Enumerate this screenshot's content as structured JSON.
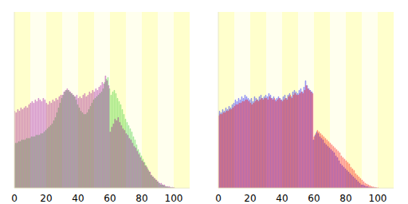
{
  "chart_data": [
    {
      "type": "bar",
      "tick_labels": "x",
      "xlim": [
        0,
        110
      ],
      "xticks": [
        0,
        20,
        40,
        60,
        80,
        100
      ],
      "ylim": [
        0,
        110
      ],
      "x": [
        0,
        1,
        2,
        3,
        4,
        5,
        6,
        7,
        8,
        9,
        10,
        11,
        12,
        13,
        14,
        15,
        16,
        17,
        18,
        19,
        20,
        21,
        22,
        23,
        24,
        25,
        26,
        27,
        28,
        29,
        30,
        31,
        32,
        33,
        34,
        35,
        36,
        37,
        38,
        39,
        40,
        41,
        42,
        43,
        44,
        45,
        46,
        47,
        48,
        49,
        50,
        51,
        52,
        53,
        54,
        55,
        56,
        57,
        58,
        59,
        60,
        61,
        62,
        63,
        64,
        65,
        66,
        67,
        68,
        69,
        70,
        71,
        72,
        73,
        74,
        75,
        76,
        77,
        78,
        79,
        80,
        81,
        82,
        83,
        84,
        85,
        86,
        87,
        88,
        89,
        90,
        91,
        92,
        93,
        94,
        95,
        96,
        97,
        98,
        99,
        100
      ],
      "series": [
        {
          "color": "#33cc33",
          "values": [
            27,
            28,
            28,
            29,
            29,
            30,
            30,
            30,
            31,
            31,
            31,
            32,
            32,
            32,
            33,
            33,
            33,
            34,
            34,
            35,
            36,
            37,
            38,
            39,
            40,
            42,
            44,
            47,
            50,
            53,
            56,
            58,
            60,
            61,
            61,
            60,
            59,
            58,
            57,
            55,
            52,
            50,
            48,
            47,
            46,
            46,
            47,
            49,
            51,
            53,
            55,
            56,
            57,
            58,
            59,
            60,
            62,
            66,
            68,
            69,
            62,
            58,
            60,
            61,
            59,
            56,
            54,
            52,
            49,
            46,
            43,
            41,
            39,
            37,
            35,
            32,
            30,
            27,
            24,
            22,
            20,
            18,
            16,
            14,
            12,
            10,
            8,
            7,
            6,
            5,
            4,
            3,
            2,
            2,
            1.5,
            1,
            0.8,
            0.5,
            0.3,
            0.2,
            0.1
          ]
        },
        {
          "color": "#990099",
          "values": [
            48,
            47,
            49,
            48,
            50,
            49,
            50,
            51,
            50,
            52,
            53,
            54,
            53,
            55,
            54,
            56,
            55,
            54,
            56,
            55,
            53,
            52,
            54,
            53,
            55,
            54,
            56,
            55,
            57,
            58,
            58,
            60,
            61,
            62,
            61,
            60,
            59,
            58,
            57,
            58,
            56,
            57,
            56,
            58,
            59,
            57,
            58,
            60,
            59,
            61,
            60,
            62,
            61,
            63,
            64,
            66,
            65,
            70,
            67,
            64,
            35,
            38,
            40,
            43,
            42,
            44,
            41,
            39,
            37,
            36,
            34,
            33,
            31,
            30,
            28,
            26,
            25,
            23,
            21,
            19,
            17,
            16,
            14,
            13,
            11,
            10,
            8,
            7,
            6,
            5,
            4,
            3,
            3,
            2,
            2,
            1,
            1,
            1,
            0.5,
            0.5,
            0.3
          ]
        }
      ]
    },
    {
      "type": "bar",
      "tick_labels": "x",
      "xlim": [
        0,
        110
      ],
      "xticks": [
        0,
        20,
        40,
        60,
        80,
        100
      ],
      "ylim": [
        0,
        110
      ],
      "x": [
        0,
        1,
        2,
        3,
        4,
        5,
        6,
        7,
        8,
        9,
        10,
        11,
        12,
        13,
        14,
        15,
        16,
        17,
        18,
        19,
        20,
        21,
        22,
        23,
        24,
        25,
        26,
        27,
        28,
        29,
        30,
        31,
        32,
        33,
        34,
        35,
        36,
        37,
        38,
        39,
        40,
        41,
        42,
        43,
        44,
        45,
        46,
        47,
        48,
        49,
        50,
        51,
        52,
        53,
        54,
        55,
        56,
        57,
        58,
        59,
        60,
        61,
        62,
        63,
        64,
        65,
        66,
        67,
        68,
        69,
        70,
        71,
        72,
        73,
        74,
        75,
        76,
        77,
        78,
        79,
        80,
        81,
        82,
        83,
        84,
        85,
        86,
        87,
        88,
        89,
        90,
        91,
        92,
        93,
        94,
        95,
        96,
        97,
        98,
        99,
        100
      ],
      "series": [
        {
          "color": "#0000ff",
          "values": [
            47,
            48,
            47,
            49,
            48,
            50,
            49,
            51,
            50,
            52,
            53,
            55,
            54,
            56,
            55,
            57,
            56,
            58,
            57,
            56,
            55,
            56,
            54,
            57,
            56,
            55,
            57,
            58,
            56,
            57,
            58,
            57,
            59,
            58,
            56,
            57,
            55,
            56,
            57,
            56,
            55,
            57,
            58,
            56,
            58,
            59,
            57,
            60,
            61,
            60,
            59,
            61,
            62,
            60,
            63,
            67,
            64,
            62,
            61,
            60,
            30,
            33,
            35,
            34,
            32,
            31,
            30,
            28,
            27,
            26,
            25,
            24,
            23,
            22,
            20,
            19,
            17,
            15,
            14,
            13,
            12,
            11,
            10,
            9,
            8,
            7,
            6,
            5,
            4,
            3,
            2,
            2,
            1.5,
            1,
            1,
            0.5,
            0.3,
            0.2,
            0.1,
            0.1,
            0
          ]
        },
        {
          "color": "#ff0000",
          "values": [
            45,
            46,
            46,
            47,
            47,
            48,
            48,
            49,
            49,
            50,
            51,
            52,
            52,
            53,
            53,
            54,
            54,
            55,
            55,
            54,
            53,
            52,
            53,
            54,
            55,
            54,
            55,
            56,
            55,
            56,
            56,
            55,
            57,
            56,
            55,
            56,
            54,
            55,
            56,
            55,
            54,
            55,
            56,
            55,
            57,
            58,
            56,
            58,
            59,
            58,
            58,
            59,
            60,
            59,
            61,
            64,
            62,
            61,
            60,
            59,
            32,
            34,
            36,
            35,
            34,
            33,
            32,
            31,
            30,
            29,
            28,
            27,
            26,
            25,
            24,
            23,
            22,
            20,
            19,
            18,
            17,
            16,
            15,
            13,
            12,
            11,
            9,
            8,
            7,
            6,
            5,
            4,
            3,
            2.5,
            2,
            1.5,
            1,
            0.7,
            0.5,
            0.3,
            0.2
          ]
        }
      ]
    }
  ]
}
